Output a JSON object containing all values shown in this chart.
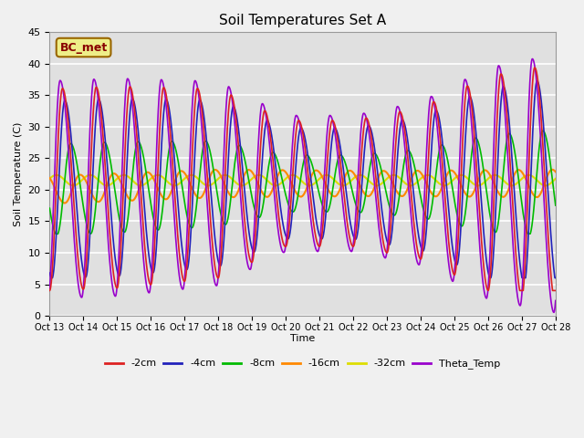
{
  "title": "Soil Temperatures Set A",
  "xlabel": "Time",
  "ylabel": "Soil Temperature (C)",
  "ylim": [
    0,
    45
  ],
  "series_colors": {
    "neg2cm": "#dd2222",
    "neg4cm": "#2222bb",
    "neg8cm": "#00bb00",
    "neg16cm": "#ff8800",
    "neg32cm": "#dddd00",
    "theta": "#9900cc"
  },
  "series_labels": {
    "neg2cm": "-2cm",
    "neg4cm": "-4cm",
    "neg8cm": "-8cm",
    "neg16cm": "-16cm",
    "neg32cm": "-32cm",
    "theta": "Theta_Temp"
  },
  "annotation_text": "BC_met",
  "annotation_box_color": "#eeee88",
  "annotation_border_color": "#996600",
  "xtick_labels": [
    "Oct 13",
    "Oct 14",
    "Oct 15",
    "Oct 16",
    "Oct 17",
    "Oct 18",
    "Oct 19",
    "Oct 20",
    "Oct 21",
    "Oct 22",
    "Oct 23",
    "Oct 24",
    "Oct 25",
    "Oct 26",
    "Oct 27",
    "Oct 28"
  ],
  "fig_facecolor": "#f0f0f0",
  "ax_facecolor": "#e0e0e0",
  "grid_color": "#ffffff"
}
